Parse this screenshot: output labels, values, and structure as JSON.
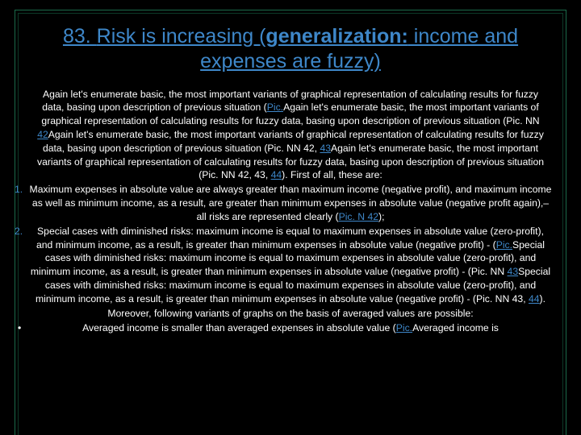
{
  "colors": {
    "background": "#000000",
    "border_outer": "#1a6b4a",
    "border_inner": "#0d3a28",
    "title": "#3e87c9",
    "link": "#3e87c9",
    "text": "#ffffff"
  },
  "typography": {
    "title_fontsize": 25,
    "body_fontsize": 12.2,
    "font_family": "Tahoma, Verdana, sans-serif"
  },
  "title": {
    "number": "83. ",
    "main": "Risk is increasing (",
    "gen": "generalization:",
    "rest": " income and expenses are fuzzy)"
  },
  "intro": {
    "t1": "Again let's enumerate basic, the most important variants of graphical representation of calculating results for fuzzy data, basing upon description of previous situation (",
    "l1": "Pic.",
    "t2": "Again let's enumerate basic, the most important variants of graphical representation of calculating results for fuzzy data, basing upon description of previous situation (Pic. NN ",
    "l2": "42",
    "t3": "Again let's enumerate basic, the most important variants of graphical representation of calculating results for fuzzy data, basing upon description of previous situation (Pic. NN 42, ",
    "l3": "43",
    "t4": "Again let's enumerate basic, the most important variants of graphical representation of calculating results for fuzzy data, basing upon description of previous situation (Pic. NN 42, 43, ",
    "l4": "44",
    "t5": "). First of all, these are:"
  },
  "item1": {
    "num": "1.",
    "t1": "Maximum expenses in absolute value are always greater than maximum income (negative profit), and maximum income as well as minimum income, as a result, are greater than minimum expenses in absolute value (negative profit again),– all risks are represented clearly (",
    "l1": "Pic. N 42",
    "t2": ");"
  },
  "item2": {
    "num": "2.",
    "t1": "Special cases with diminished risks: maximum income is equal to maximum expenses in absolute value (zero-profit), and minimum income, as a result, is greater than minimum expenses in absolute value (negative profit) - (",
    "l1": "Pic.",
    "t2": "Special cases with diminished risks: maximum income is equal to maximum expenses in absolute value (zero-profit), and minimum income, as a result, is greater than minimum expenses in absolute value (negative profit) - (Pic. NN ",
    "l2": "43",
    "t3": "Special cases with diminished risks: maximum income is equal to maximum expenses in absolute value (zero-profit), and minimum income, as a result, is greater than minimum expenses in absolute value (negative profit) - (Pic. NN 43, ",
    "l3": "44",
    "t4": ")."
  },
  "moreover": "Moreover, following variants of graphs on the basis of averaged values are possible:",
  "bul1": {
    "mark": "•",
    "t1": "Averaged income is smaller than averaged expenses in absolute value (",
    "l1": "Pic.",
    "t2": "Averaged income is"
  }
}
